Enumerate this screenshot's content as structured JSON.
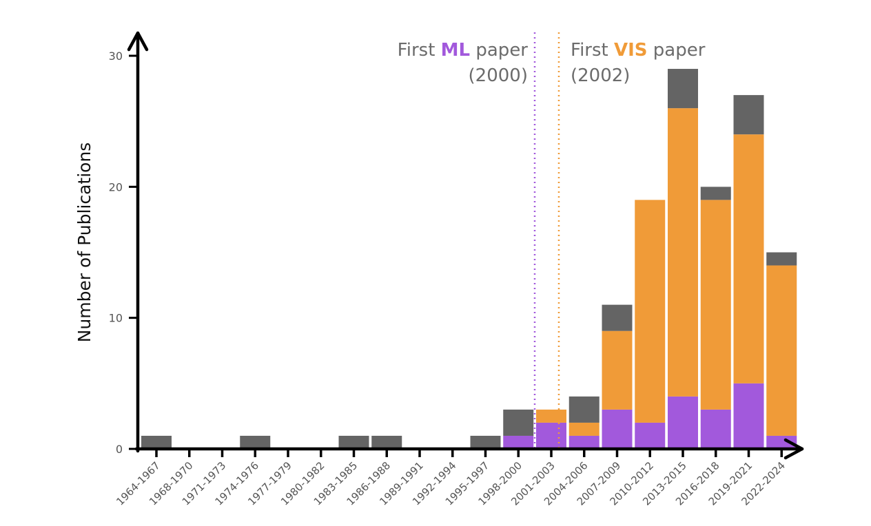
{
  "chart_data": {
    "type": "bar",
    "stacked": true,
    "ylabel": "Number of Publications",
    "ylim": [
      0,
      30
    ],
    "yticks": [
      0,
      10,
      20,
      30
    ],
    "grid": false,
    "categories": [
      "1964-1967",
      "1968-1970",
      "1971-1973",
      "1974-1976",
      "1977-1979",
      "1980-1982",
      "1983-1985",
      "1986-1988",
      "1989-1991",
      "1992-1994",
      "1995-1997",
      "1998-2000",
      "2001-2003",
      "2004-2006",
      "2007-2009",
      "2010-2012",
      "2013-2015",
      "2016-2018",
      "2019-2021",
      "2022-2024"
    ],
    "series": [
      {
        "color": "#a259dc",
        "values": [
          0,
          0,
          0,
          0,
          0,
          0,
          0,
          0,
          0,
          0,
          0,
          1,
          2,
          1,
          3,
          2,
          4,
          3,
          5,
          1
        ]
      },
      {
        "color": "#f09b38",
        "values": [
          0,
          0,
          0,
          0,
          0,
          0,
          0,
          0,
          0,
          0,
          0,
          0,
          1,
          1,
          6,
          17,
          22,
          16,
          19,
          13
        ]
      },
      {
        "color": "#646464",
        "values": [
          1,
          0,
          0,
          1,
          0,
          0,
          1,
          1,
          0,
          0,
          1,
          2,
          0,
          2,
          2,
          0,
          3,
          1,
          3,
          1
        ]
      }
    ],
    "annotations": [
      {
        "prefix": "First ",
        "keyword": "ML",
        "suffix": " paper",
        "year": "(2000)",
        "color": "#a259dc",
        "position": "2000"
      },
      {
        "prefix": "First ",
        "keyword": "VIS",
        "suffix": " paper",
        "year": "(2002)",
        "color": "#f09b38",
        "position": "2002"
      }
    ]
  }
}
